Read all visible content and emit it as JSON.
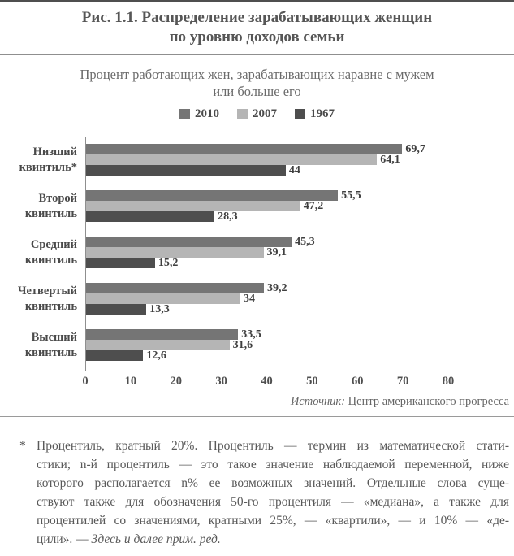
{
  "figure": {
    "title": "Рис. 1.1. Распределение зарабатывающих женщин\nпо уровню доходов семьи"
  },
  "chart_data": {
    "type": "bar",
    "orientation": "horizontal",
    "title": "Процент работающих жен, зарабатывающих наравне с мужем\nили больше его",
    "categories": [
      "Низший\nквинтиль*",
      "Второй\nквинтиль",
      "Средний\nквинтиль",
      "Четвертый\nквинтиль",
      "Высший\nквинтиль"
    ],
    "series": [
      {
        "name": "2010",
        "color": "#757575",
        "values": [
          69.7,
          55.5,
          45.3,
          39.2,
          33.5
        ],
        "labels": [
          "69,7",
          "55,5",
          "45,3",
          "39,2",
          "33,5"
        ]
      },
      {
        "name": "2007",
        "color": "#b5b5b5",
        "values": [
          64.1,
          47.2,
          39.1,
          34,
          31.6
        ],
        "labels": [
          "64,1",
          "47,2",
          "39,1",
          "34",
          "31,6"
        ]
      },
      {
        "name": "1967",
        "color": "#4e4e4e",
        "values": [
          44,
          28.3,
          15.2,
          13.3,
          12.6
        ],
        "labels": [
          "44",
          "28,3",
          "15,2",
          "13,3",
          "12,6"
        ]
      }
    ],
    "xlim": [
      0,
      80
    ],
    "x_ticks": [
      0,
      10,
      20,
      30,
      40,
      50,
      60,
      70,
      80
    ],
    "xlabel": "",
    "ylabel": "",
    "legend_position": "top-center",
    "grid": false
  },
  "source": {
    "label_italic": "Источник:",
    "text": " Центр американского прогресса"
  },
  "footnote": {
    "marker": "*",
    "lines": [
      "Процентиль, кратный 20%. Процентиль — термин из математической стати-",
      "стики; n-й процентиль — это такое значение наблюдаемой переменной, ниже",
      "которого располагается n% ее возможных значений. Отдельные слова суще-",
      "ствуют также для обозначения 50-го процентиля — «медиана», а также для",
      "процентилей со значениями, кратными 25%, — «квартили», — и 10% — «де-"
    ],
    "last_line": "цили». — ",
    "italic_tail": "Здесь и далее прим. ред."
  }
}
